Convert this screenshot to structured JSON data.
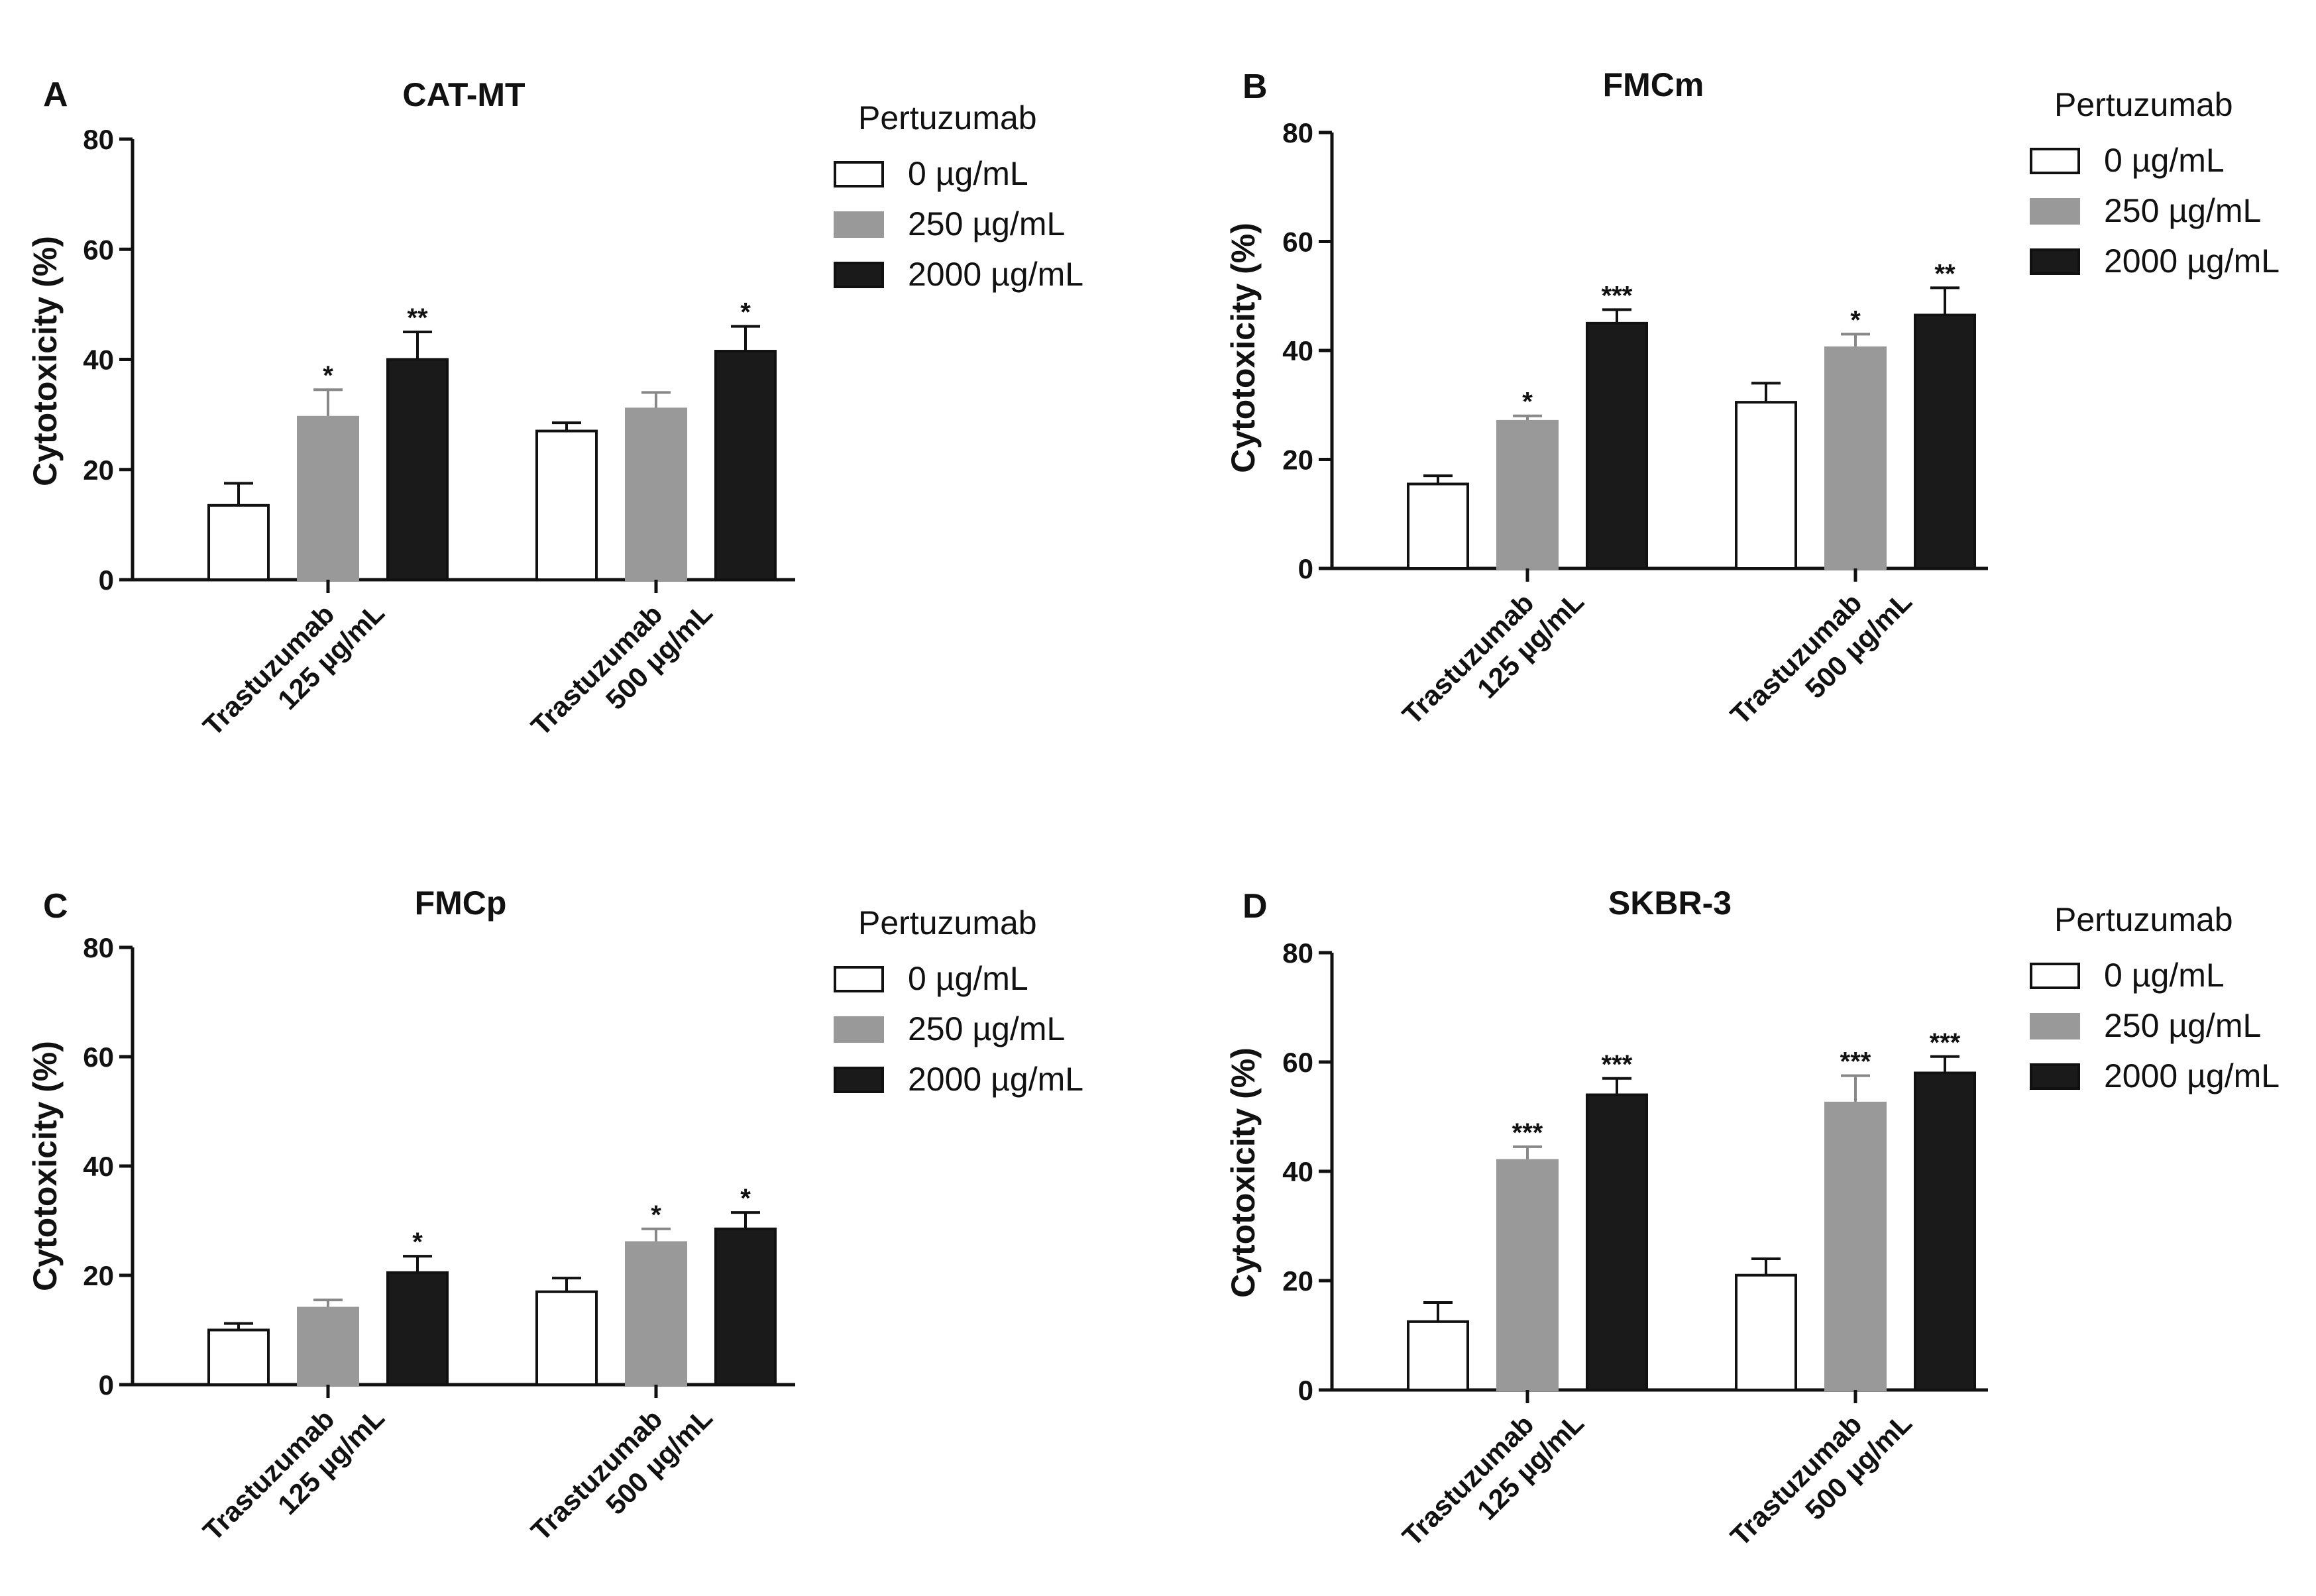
{
  "chart_data": [
    {
      "type": "bar",
      "panel": "A",
      "title": "CAT-MT",
      "ylabel": "Cytotoxicity (%)",
      "ylim": [
        0,
        80
      ],
      "yticks": [
        "0",
        "20",
        "40",
        "60",
        "80"
      ],
      "categories": [
        [
          "Trastuzumab",
          "125 µg/mL"
        ],
        [
          "Trastuzumab",
          "500 µg/mL"
        ]
      ],
      "legend_title": "Pertuzumab",
      "series": [
        {
          "name": "0 µg/mL",
          "color": "#ffffff",
          "values": [
            13.5,
            27
          ],
          "errors": [
            4,
            1.5
          ],
          "sig": [
            "",
            ""
          ]
        },
        {
          "name": "250 µg/mL",
          "color": "#999999",
          "values": [
            29.5,
            31
          ],
          "errors": [
            5,
            3
          ],
          "sig": [
            "*",
            ""
          ]
        },
        {
          "name": "2000 µg/mL",
          "color": "#1a1a1a",
          "values": [
            40,
            41.5
          ],
          "errors": [
            5,
            4.5
          ],
          "sig": [
            "**",
            "*"
          ]
        }
      ]
    },
    {
      "type": "bar",
      "panel": "B",
      "title": "FMCm",
      "ylabel": "Cytotoxicity (%)",
      "ylim": [
        0,
        80
      ],
      "yticks": [
        "0",
        "20",
        "40",
        "60",
        "80"
      ],
      "categories": [
        [
          "Trastuzumab",
          "125 µg/mL"
        ],
        [
          "Trastuzumab",
          "500 µg/mL"
        ]
      ],
      "legend_title": "Pertuzumab",
      "series": [
        {
          "name": "0 µg/mL",
          "color": "#ffffff",
          "values": [
            15.5,
            30.5
          ],
          "errors": [
            1.5,
            3.5
          ],
          "sig": [
            "",
            ""
          ]
        },
        {
          "name": "250 µg/mL",
          "color": "#999999",
          "values": [
            27,
            40.5
          ],
          "errors": [
            1,
            2.5
          ],
          "sig": [
            "*",
            "*"
          ]
        },
        {
          "name": "2000 µg/mL",
          "color": "#1a1a1a",
          "values": [
            45,
            46.5
          ],
          "errors": [
            2.5,
            5
          ],
          "sig": [
            "***",
            "**"
          ]
        }
      ]
    },
    {
      "type": "bar",
      "panel": "C",
      "title": "FMCp",
      "ylabel": "Cytotoxicity (%)",
      "ylim": [
        0,
        80
      ],
      "yticks": [
        "0",
        "20",
        "40",
        "60",
        "80"
      ],
      "categories": [
        [
          "Trastuzumab",
          "125 µg/mL"
        ],
        [
          "Trastuzumab",
          "500 µg/mL"
        ]
      ],
      "legend_title": "Pertuzumab",
      "series": [
        {
          "name": "0 µg/mL",
          "color": "#ffffff",
          "values": [
            10,
            17
          ],
          "errors": [
            1.2,
            2.5
          ],
          "sig": [
            "",
            ""
          ]
        },
        {
          "name": "250 µg/mL",
          "color": "#999999",
          "values": [
            14,
            26
          ],
          "errors": [
            1.5,
            2.5
          ],
          "sig": [
            "",
            "*"
          ]
        },
        {
          "name": "2000 µg/mL",
          "color": "#1a1a1a",
          "values": [
            20.5,
            28.5
          ],
          "errors": [
            3,
            3
          ],
          "sig": [
            "*",
            "*"
          ]
        }
      ]
    },
    {
      "type": "bar",
      "panel": "D",
      "title": "SKBR-3",
      "ylabel": "Cytotoxicity (%)",
      "ylim": [
        0,
        80
      ],
      "yticks": [
        "0",
        "20",
        "40",
        "60",
        "80"
      ],
      "categories": [
        [
          "Trastuzumab",
          "125 µg/mL"
        ],
        [
          "Trastuzumab",
          "500 µg/mL"
        ]
      ],
      "legend_title": "Pertuzumab",
      "series": [
        {
          "name": "0 µg/mL",
          "color": "#ffffff",
          "values": [
            12.5,
            21
          ],
          "errors": [
            3.5,
            3
          ],
          "sig": [
            "",
            ""
          ]
        },
        {
          "name": "250 µg/mL",
          "color": "#999999",
          "values": [
            42,
            52.5
          ],
          "errors": [
            2.5,
            5
          ],
          "sig": [
            "***",
            "***"
          ]
        },
        {
          "name": "2000 µg/mL",
          "color": "#1a1a1a",
          "values": [
            54,
            58
          ],
          "errors": [
            3,
            3
          ],
          "sig": [
            "***",
            "***"
          ]
        }
      ]
    }
  ]
}
